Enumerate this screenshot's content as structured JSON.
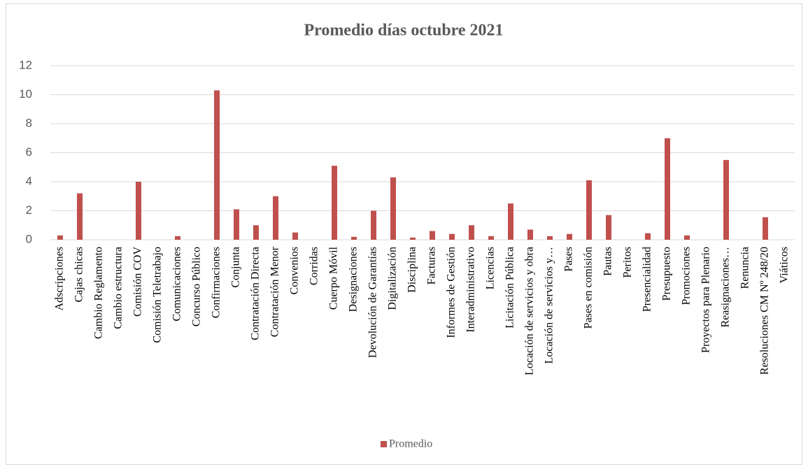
{
  "chart_data": {
    "type": "bar",
    "title": "Promedio días octubre 2021",
    "categories": [
      "Adscripciones",
      "Cajas chicas",
      "Cambio Reglamento",
      "Cambio estructura",
      "Comisión COV",
      "Comisión Teletrabajo",
      "Comunicaciones",
      "Concurso Público",
      "Confirmaciones",
      "Conjunta",
      "Contratación Directa",
      "Contratación Menor",
      "Convenios",
      "Corridas",
      "Cuerpo Móvil",
      "Designaciones",
      "Devolución de Garantías",
      "Digitalización",
      "Disciplina",
      "Facturas",
      "Informes de Gestión",
      "Interadministrativo",
      "Licencias",
      "Licitación Pública",
      "Locación de servicios y obra",
      "Locación de servicios y…",
      "Pases",
      "Pases en comisión",
      "Pautas",
      "Peritos",
      "Presencialidad",
      "Presupuesto",
      "Promociones",
      "Proyectos para Plenario",
      "Reasignaciones…",
      "Renuncia",
      "Resoluciones CM Nº 248/20",
      "Viáticos"
    ],
    "series": [
      {
        "name": "Promedio",
        "color": "#c0504d",
        "values": [
          0.3,
          3.2,
          0,
          0,
          4,
          0,
          0.25,
          0,
          10.3,
          2.1,
          1,
          3,
          0.5,
          0,
          5.1,
          0.2,
          2,
          4.3,
          0.15,
          0.6,
          0.4,
          1,
          0.25,
          2.5,
          0.7,
          0.25,
          0.4,
          4.1,
          1.7,
          0,
          0.45,
          7,
          0.3,
          0,
          5.5,
          0,
          1.55,
          0
        ]
      }
    ],
    "ylim": [
      0,
      12
    ],
    "yticks": [
      0,
      2,
      4,
      6,
      8,
      10,
      12
    ],
    "grid": true,
    "legend": "bottom"
  }
}
